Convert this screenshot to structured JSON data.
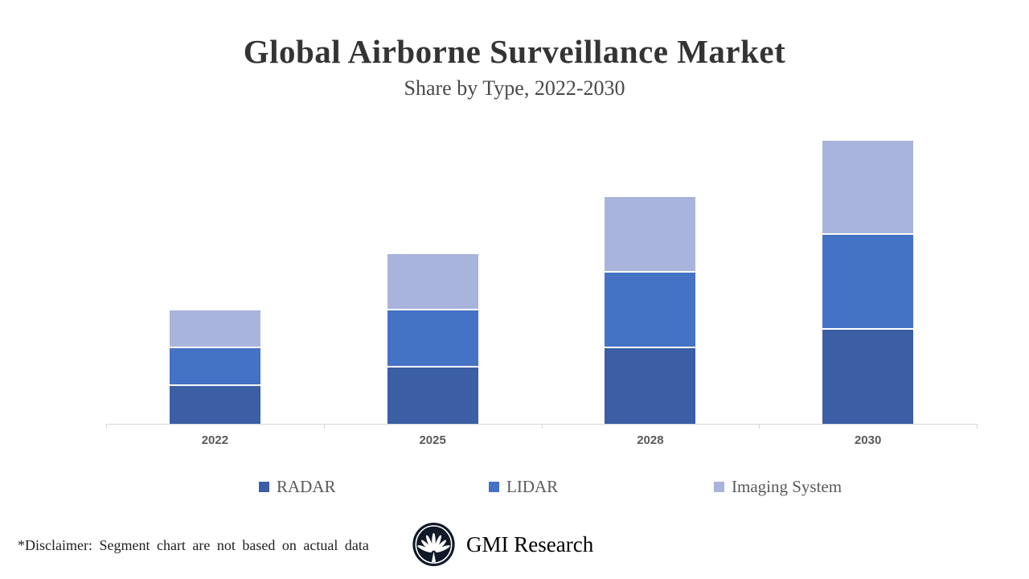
{
  "header": {
    "title": "Global Airborne Surveillance Market",
    "subtitle": "Share by Type, 2022-2030"
  },
  "chart_data": {
    "type": "bar",
    "stacked": true,
    "title": "Global Airborne Surveillance Market",
    "subtitle": "Share by Type, 2022-2030",
    "categories": [
      "2022",
      "2025",
      "2028",
      "2030"
    ],
    "series": [
      {
        "name": "RADAR",
        "color": "#3B5EA4",
        "values": [
          2,
          3,
          4,
          5
        ]
      },
      {
        "name": "LIDAR",
        "color": "#4472C4",
        "values": [
          2,
          3,
          4,
          5
        ]
      },
      {
        "name": "Imaging System",
        "color": "#A9B4DC",
        "values": [
          2,
          3,
          4,
          5
        ]
      }
    ],
    "xlabel": "",
    "ylabel": "",
    "ylim": [
      0,
      16
    ],
    "value_axis_shown": false,
    "gridlines": false,
    "legend_position": "bottom",
    "units": "relative share (illustrative segments)"
  },
  "legend": {
    "items": [
      {
        "label": "RADAR",
        "color": "#3B5EA4"
      },
      {
        "label": "LIDAR",
        "color": "#4472C4"
      },
      {
        "label": "Imaging System",
        "color": "#A9B4DC"
      }
    ]
  },
  "footer": {
    "disclaimer": "*Disclaimer: Segment chart are not based on actual data",
    "brand": "GMI Research",
    "logo_color": "#111827"
  }
}
